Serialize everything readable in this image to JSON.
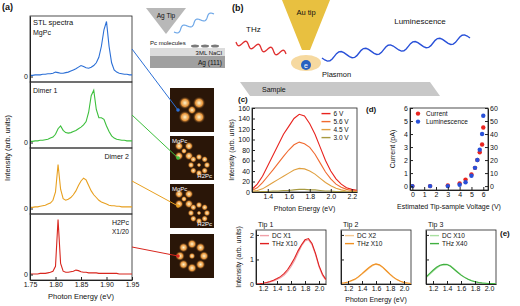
{
  "chart_data": [
    {
      "type": "line",
      "title": "STL spectra",
      "ylabel": "Intensity (arb. units)",
      "x": [
        1.75,
        1.755,
        1.76,
        1.765,
        1.77,
        1.775,
        1.78,
        1.785,
        1.79,
        1.795,
        1.8,
        1.805,
        1.81,
        1.815,
        1.82,
        1.825,
        1.83,
        1.835,
        1.84,
        1.845,
        1.85,
        1.855,
        1.86,
        1.865,
        1.87,
        1.875,
        1.88,
        1.885,
        1.89,
        1.895,
        1.9,
        1.905,
        1.91,
        1.915,
        1.92,
        1.925,
        1.93,
        1.935,
        1.94,
        1.945,
        1.95
      ],
      "xlim": [
        1.75,
        1.95
      ],
      "ylim": [
        -0.1,
        1.1
      ],
      "yticks": [
        0
      ],
      "tick_labels": "y",
      "series": [
        {
          "name": "MgPc",
          "color": "#2b6fd6",
          "values": [
            0.02,
            0.02,
            0.03,
            0.03,
            0.03,
            0.04,
            0.04,
            0.05,
            0.05,
            0.06,
            0.08,
            0.07,
            0.06,
            0.06,
            0.07,
            0.08,
            0.1,
            0.12,
            0.14,
            0.17,
            0.2,
            0.18,
            0.16,
            0.15,
            0.17,
            0.2,
            0.25,
            0.35,
            0.55,
            0.85,
            1.0,
            0.55,
            0.25,
            0.12,
            0.08,
            0.06,
            0.05,
            0.04,
            0.04,
            0.03,
            0.03
          ]
        }
      ]
    },
    {
      "type": "line",
      "x": [
        1.75,
        1.755,
        1.76,
        1.765,
        1.77,
        1.775,
        1.78,
        1.785,
        1.79,
        1.795,
        1.8,
        1.805,
        1.81,
        1.815,
        1.82,
        1.825,
        1.83,
        1.835,
        1.84,
        1.845,
        1.85,
        1.855,
        1.86,
        1.865,
        1.87,
        1.875,
        1.88,
        1.885,
        1.89,
        1.895,
        1.9,
        1.905,
        1.91,
        1.915,
        1.92,
        1.925,
        1.93,
        1.935,
        1.94,
        1.945,
        1.95
      ],
      "xlim": [
        1.75,
        1.95
      ],
      "ylim": [
        -0.1,
        1.1
      ],
      "yticks": [
        0
      ],
      "tick_labels": "y",
      "series": [
        {
          "name": "Dimer 1",
          "color": "#3cbf3c",
          "values": [
            0.02,
            0.02,
            0.03,
            0.03,
            0.04,
            0.04,
            0.05,
            0.06,
            0.08,
            0.1,
            0.15,
            0.25,
            0.3,
            0.22,
            0.18,
            0.17,
            0.18,
            0.2,
            0.22,
            0.25,
            0.28,
            0.32,
            0.38,
            0.55,
            0.85,
            0.95,
            0.6,
            0.45,
            0.45,
            0.42,
            0.3,
            0.2,
            0.12,
            0.08,
            0.06,
            0.05,
            0.04,
            0.04,
            0.03,
            0.03,
            0.03
          ]
        }
      ]
    },
    {
      "type": "line",
      "x": [
        1.75,
        1.755,
        1.76,
        1.765,
        1.77,
        1.775,
        1.78,
        1.785,
        1.79,
        1.795,
        1.8,
        1.805,
        1.81,
        1.815,
        1.82,
        1.825,
        1.83,
        1.835,
        1.84,
        1.845,
        1.85,
        1.855,
        1.86,
        1.865,
        1.87,
        1.875,
        1.88,
        1.885,
        1.89,
        1.895,
        1.9,
        1.905,
        1.91,
        1.915,
        1.92,
        1.925,
        1.93,
        1.935,
        1.94,
        1.945,
        1.95
      ],
      "xlim": [
        1.75,
        1.95
      ],
      "ylim": [
        -0.1,
        1.1
      ],
      "yticks": [
        0
      ],
      "tick_labels": "y",
      "series": [
        {
          "name": "Dimer 2",
          "color": "#e8a020",
          "values": [
            0.02,
            0.02,
            0.03,
            0.03,
            0.04,
            0.05,
            0.06,
            0.08,
            0.1,
            0.15,
            0.3,
            0.8,
            0.35,
            0.18,
            0.15,
            0.17,
            0.2,
            0.25,
            0.32,
            0.42,
            0.5,
            0.55,
            0.52,
            0.42,
            0.32,
            0.25,
            0.2,
            0.15,
            0.12,
            0.1,
            0.08,
            0.06,
            0.05,
            0.05,
            0.04,
            0.04,
            0.03,
            0.03,
            0.03,
            0.03,
            0.03
          ]
        }
      ]
    },
    {
      "type": "line",
      "xlabel": "Photon Energy (eV)",
      "annotations": [
        "X1/20"
      ],
      "x": [
        1.75,
        1.755,
        1.76,
        1.765,
        1.77,
        1.775,
        1.78,
        1.785,
        1.79,
        1.795,
        1.8,
        1.805,
        1.81,
        1.815,
        1.82,
        1.825,
        1.83,
        1.835,
        1.84,
        1.845,
        1.85,
        1.855,
        1.86,
        1.865,
        1.87,
        1.875,
        1.88,
        1.885,
        1.89,
        1.895,
        1.9,
        1.905,
        1.91,
        1.915,
        1.92,
        1.925,
        1.93,
        1.935,
        1.94,
        1.945,
        1.95
      ],
      "xlim": [
        1.75,
        1.95
      ],
      "xticks": [
        1.75,
        {
          "value": 1.8,
          "label": "1.80"
        },
        1.85,
        {
          "value": 1.9,
          "label": "1.90"
        },
        1.95
      ],
      "ylim": [
        -0.1,
        1.1
      ],
      "yticks": [
        0
      ],
      "series": [
        {
          "name": "H2Pc",
          "color": "#d8261e",
          "values": [
            0.01,
            0.01,
            0.01,
            0.01,
            0.02,
            0.02,
            0.02,
            0.03,
            0.04,
            0.06,
            0.15,
            1.0,
            0.2,
            0.06,
            0.04,
            0.04,
            0.05,
            0.06,
            0.08,
            0.07,
            0.05,
            0.04,
            0.04,
            0.03,
            0.03,
            0.03,
            0.03,
            0.02,
            0.02,
            0.02,
            0.02,
            0.02,
            0.02,
            0.02,
            0.02,
            0.01,
            0.01,
            0.01,
            0.01,
            0.01,
            0.01
          ]
        }
      ]
    },
    {
      "type": "line",
      "xlabel": "Photon Energy (eV)",
      "ylabel": "Intensity (arb. units)",
      "legend": "upper right",
      "x": [
        1.25,
        1.3,
        1.35,
        1.4,
        1.45,
        1.5,
        1.55,
        1.6,
        1.65,
        1.7,
        1.75,
        1.8,
        1.85,
        1.9,
        1.95,
        2,
        2.05,
        2.1,
        2.15,
        2.2,
        2.25
      ],
      "xlim": [
        1.25,
        2.25
      ],
      "xticks": [
        1.4,
        1.6,
        1.8,
        {
          "value": 2,
          "label": "2.0"
        },
        2.2
      ],
      "ylim": [
        0,
        160
      ],
      "yticks": [
        0,
        20,
        40,
        60,
        80,
        100,
        120,
        140,
        160
      ],
      "series": [
        {
          "name": "6 V",
          "color": "#e8231e",
          "values": [
            5,
            15,
            30,
            50,
            70,
            90,
            110,
            125,
            140,
            148,
            145,
            130,
            110,
            85,
            60,
            40,
            25,
            15,
            8,
            5,
            3
          ]
        },
        {
          "name": "5.6 V",
          "color": "#f06a30",
          "values": [
            3,
            8,
            18,
            30,
            42,
            55,
            68,
            80,
            90,
            95,
            92,
            85,
            72,
            55,
            38,
            25,
            15,
            9,
            5,
            3,
            2
          ]
        },
        {
          "name": "4.5 V",
          "color": "#e0a040",
          "values": [
            1,
            3,
            6,
            12,
            18,
            24,
            30,
            36,
            42,
            45,
            44,
            40,
            34,
            26,
            18,
            12,
            7,
            4,
            2,
            1,
            1
          ]
        },
        {
          "name": "3.0 V",
          "color": "#a89a40",
          "values": [
            0,
            0,
            1,
            1,
            2,
            2,
            3,
            3,
            4,
            5,
            5,
            4,
            4,
            3,
            2,
            2,
            1,
            1,
            0,
            0,
            0
          ]
        }
      ]
    },
    {
      "type": "scatter",
      "xlabel": "Estimated Tip-sample Voltage (V)",
      "ylabel": "Current (pA)",
      "legend": "upper left",
      "x": [
        0,
        1.5,
        3,
        4,
        4.5,
        5,
        5.3,
        5.5,
        5.7,
        5.9,
        6
      ],
      "xlim": [
        -0.2,
        6.4
      ],
      "xticks": [
        0,
        1,
        2,
        3,
        4,
        5,
        6
      ],
      "ylim": [
        -0.3,
        6
      ],
      "yticks": [
        0,
        1,
        2,
        3,
        4,
        5,
        6
      ],
      "y2lim": [
        -3,
        60
      ],
      "y2ticks": [
        0,
        10,
        20,
        30,
        40,
        50,
        60
      ],
      "series": [
        {
          "name": "Current",
          "color": "#e8231e",
          "marker": "circle",
          "values": [
            0,
            0,
            0.05,
            0.2,
            0.5,
            0.9,
            1.4,
            2.0,
            2.6,
            3.2,
            4.5
          ]
        },
        {
          "name": "Luminescence",
          "color": "#2850d8",
          "marker": "circle",
          "axis": "y2",
          "values": [
            0,
            0,
            0,
            1,
            3,
            8,
            14,
            20,
            28,
            40,
            54
          ]
        }
      ]
    },
    {
      "type": "line",
      "title": "Tip 1",
      "ylabel": "Intensity (arb. units)",
      "legend": "upper left",
      "x": [
        1.1,
        1.15,
        1.2,
        1.25,
        1.3,
        1.35,
        1.4,
        1.45,
        1.5,
        1.55,
        1.6,
        1.65,
        1.7,
        1.75,
        1.8,
        1.85,
        1.9,
        1.95,
        2.0,
        2.05,
        2.1
      ],
      "xlim": [
        1.1,
        2.1
      ],
      "xticks": [
        1.2,
        1.4,
        1.6,
        1.8,
        {
          "value": 2,
          "label": "2.0"
        }
      ],
      "ylim": [
        0,
        2.2
      ],
      "yticks": [
        0,
        1,
        2
      ],
      "series": [
        {
          "name": "DC X1",
          "color": "#f0a0a8",
          "values": [
            0,
            0,
            0.02,
            0.05,
            0.08,
            0.12,
            0.18,
            0.25,
            0.35,
            0.5,
            0.7,
            0.95,
            1.25,
            1.55,
            1.75,
            1.8,
            1.6,
            1.2,
            0.7,
            0.35,
            0.15
          ]
        },
        {
          "name": "THz X10",
          "color": "#e02020",
          "values": [
            0,
            0.01,
            0.03,
            0.06,
            0.1,
            0.15,
            0.22,
            0.3,
            0.42,
            0.58,
            0.8,
            1.05,
            1.35,
            1.6,
            1.8,
            1.85,
            1.65,
            1.25,
            0.75,
            0.4,
            0.18
          ]
        }
      ]
    },
    {
      "type": "line",
      "title": "Tip 2",
      "xlabel": "Photon Energy (eV)",
      "legend": "upper left",
      "tick_labels": "x",
      "x": [
        1.1,
        1.15,
        1.2,
        1.25,
        1.3,
        1.35,
        1.4,
        1.45,
        1.5,
        1.55,
        1.6,
        1.65,
        1.7,
        1.75,
        1.8,
        1.85,
        1.9,
        1.95,
        2.0,
        2.05,
        2.1
      ],
      "xlim": [
        1.1,
        2.1
      ],
      "xticks": [
        1.2,
        1.4,
        1.6,
        1.8,
        {
          "value": 2,
          "label": "2.0"
        }
      ],
      "ylim": [
        0,
        2.2
      ],
      "yticks": [
        0,
        1,
        2
      ],
      "series": [
        {
          "name": "DC X2",
          "color": "#f5c890",
          "values": [
            0.02,
            0.04,
            0.07,
            0.12,
            0.18,
            0.28,
            0.4,
            0.52,
            0.64,
            0.74,
            0.8,
            0.76,
            0.66,
            0.52,
            0.38,
            0.26,
            0.17,
            0.1,
            0.06,
            0.03,
            0.02
          ]
        },
        {
          "name": "THz X10",
          "color": "#f09020",
          "values": [
            0.03,
            0.05,
            0.08,
            0.14,
            0.2,
            0.3,
            0.42,
            0.55,
            0.67,
            0.77,
            0.82,
            0.78,
            0.68,
            0.54,
            0.4,
            0.28,
            0.18,
            0.11,
            0.06,
            0.04,
            0.02
          ]
        }
      ]
    },
    {
      "type": "line",
      "title": "Tip 3",
      "legend": "upper left",
      "tick_labels": "x",
      "x": [
        1.1,
        1.15,
        1.2,
        1.25,
        1.3,
        1.35,
        1.4,
        1.45,
        1.5,
        1.55,
        1.6,
        1.65,
        1.7,
        1.75,
        1.8,
        1.85,
        1.9,
        1.95,
        2.0,
        2.05,
        2.1
      ],
      "xlim": [
        1.1,
        2.1
      ],
      "xticks": [
        1.2,
        1.4,
        1.6,
        1.8,
        {
          "value": 2,
          "label": "2.0"
        }
      ],
      "ylim": [
        0,
        2.2
      ],
      "yticks": [
        0,
        1,
        2
      ],
      "series": [
        {
          "name": "DC X10",
          "color": "#a8e0a0",
          "values": [
            0.25,
            0.38,
            0.52,
            0.64,
            0.74,
            0.79,
            0.8,
            0.74,
            0.62,
            0.5,
            0.38,
            0.28,
            0.2,
            0.14,
            0.1,
            0.07,
            0.05,
            0.03,
            0.02,
            0.02,
            0.01
          ]
        },
        {
          "name": "THz X40",
          "color": "#40b040",
          "values": [
            0.28,
            0.42,
            0.56,
            0.68,
            0.76,
            0.8,
            0.79,
            0.72,
            0.6,
            0.48,
            0.36,
            0.27,
            0.19,
            0.13,
            0.09,
            0.06,
            0.04,
            0.03,
            0.02,
            0.02,
            0.01
          ]
        }
      ]
    }
  ],
  "diagram": {
    "panel_labels": [
      "(a)",
      "(b)",
      "(c)",
      "(d)",
      "(e)"
    ],
    "schematic_a": {
      "tip": "Ag Tip",
      "molecules": "Pc molecules",
      "layers": [
        "3ML NaCl",
        "Ag (111)"
      ]
    },
    "stm_image_labels": [
      [
        "MgPc",
        "H2Pc"
      ],
      [
        "MgPc",
        "H2Pc"
      ]
    ],
    "schematic_b": {
      "wave_in": "THz",
      "tip": "Au tip",
      "emission": "Luminescence",
      "plasmon": "Plasmon",
      "electron": "e",
      "sample": "Sample"
    }
  }
}
